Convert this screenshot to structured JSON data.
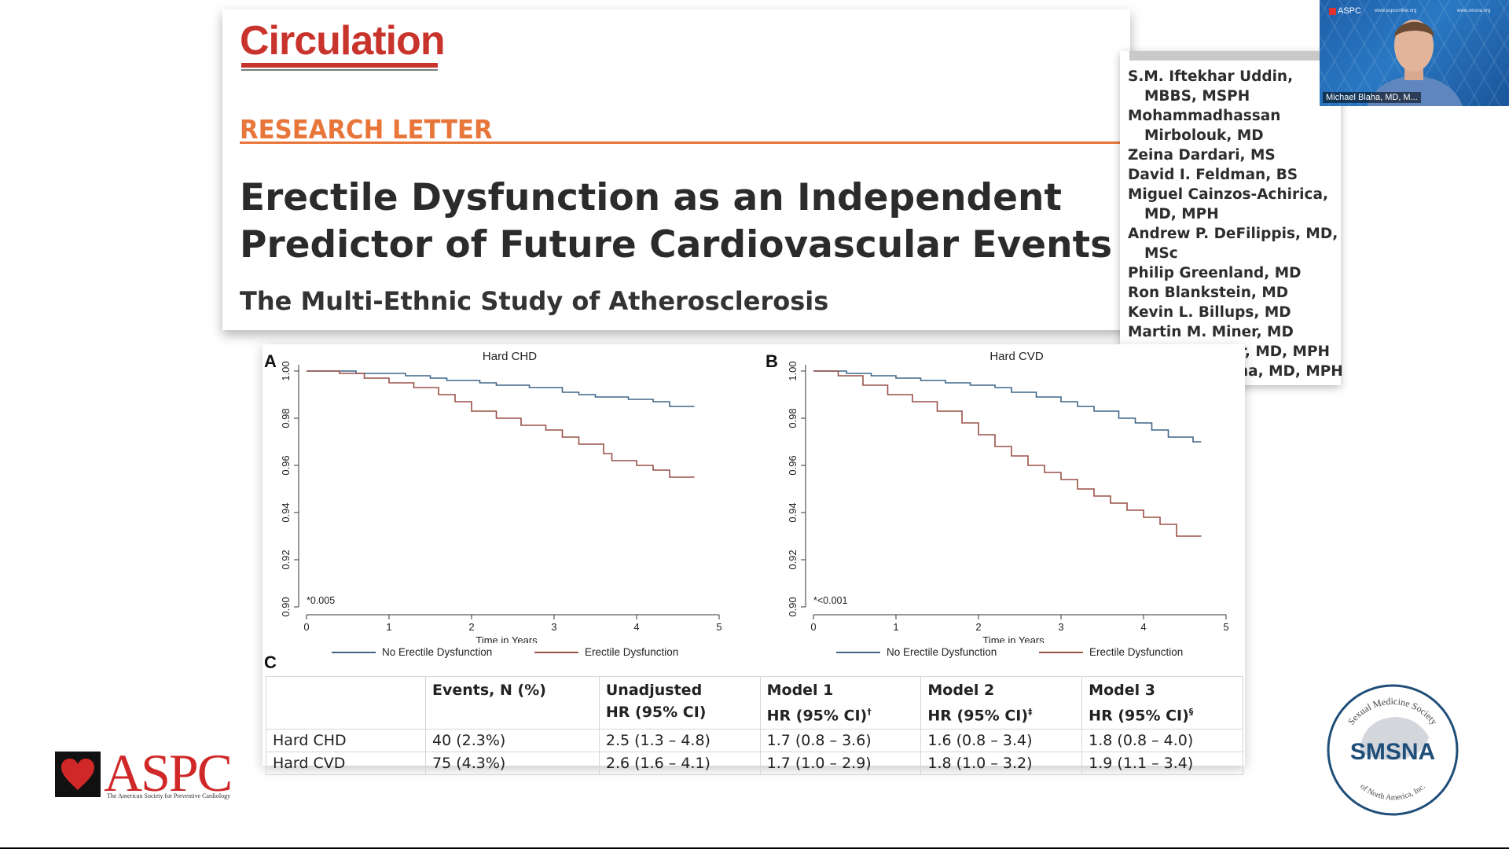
{
  "title_card": {
    "journal": "Circulation",
    "section": "RESEARCH LETTER",
    "title": "Erectile Dysfunction as an Independent Predictor of Future Cardiovascular Events",
    "subtitle": "The Multi-Ethnic Study of Atherosclerosis"
  },
  "authors": [
    "S.M. Iftekhar Uddin, MBBS, MSPH",
    "Mohammadhassan Mirbolouk, MD",
    "Zeina Dardari, MS",
    "David I. Feldman, BS",
    "Miguel Cainzos-Achirica, MD, MPH",
    "Andrew P. DeFilippis, MD, MSc",
    "Philip Greenland, MD",
    "Ron Blankstein, MD",
    "Kevin L. Billups, MD",
    "Martin M. Miner, MD",
    "Khurram Nasir, MD, MPH",
    "Michael J. Blaha, MD, MPH"
  ],
  "video": {
    "header": "ASPC",
    "url_left": "www.aspconline.org",
    "url_right": "www.smsna.org",
    "presenter": "Michael Blaha, MD, M..."
  },
  "figure": {
    "panel_c_label": "C",
    "legend": {
      "no_ed": "No Erectile Dysfunction",
      "ed": "Erectile Dysfunction",
      "colors": {
        "no_ed": "#3f6688",
        "ed": "#9a5148"
      }
    }
  },
  "chart_data": [
    {
      "type": "line",
      "panel": "A",
      "title": "Hard CHD",
      "xlabel": "Time in Years",
      "ylabel": "",
      "xlim": [
        0,
        5
      ],
      "ylim": [
        0.9,
        1.0
      ],
      "xticks": [
        "0",
        "1",
        "2",
        "3",
        "4",
        "5"
      ],
      "yticks": [
        "0.90",
        "0.92",
        "0.94",
        "0.96",
        "0.98",
        "1.00"
      ],
      "annotation": "*0.005",
      "series": [
        {
          "name": "No Erectile Dysfunction",
          "color": "#3f6688",
          "x": [
            0,
            0.6,
            1.2,
            1.5,
            1.7,
            2.1,
            2.3,
            2.7,
            3.1,
            3.3,
            3.5,
            3.9,
            4.2,
            4.4,
            4.7
          ],
          "y": [
            1.0,
            0.999,
            0.998,
            0.997,
            0.996,
            0.995,
            0.994,
            0.993,
            0.991,
            0.99,
            0.989,
            0.988,
            0.987,
            0.985,
            0.985
          ]
        },
        {
          "name": "Erectile Dysfunction",
          "color": "#9a5148",
          "x": [
            0,
            0.4,
            0.7,
            1.0,
            1.3,
            1.6,
            1.8,
            2.0,
            2.3,
            2.6,
            2.9,
            3.1,
            3.3,
            3.6,
            3.7,
            4.0,
            4.2,
            4.4,
            4.7
          ],
          "y": [
            1.0,
            0.999,
            0.997,
            0.995,
            0.993,
            0.99,
            0.987,
            0.983,
            0.98,
            0.977,
            0.975,
            0.972,
            0.969,
            0.965,
            0.962,
            0.96,
            0.958,
            0.955,
            0.955
          ]
        }
      ]
    },
    {
      "type": "line",
      "panel": "B",
      "title": "Hard CVD",
      "xlabel": "Time in Years",
      "ylabel": "",
      "xlim": [
        0,
        5
      ],
      "ylim": [
        0.9,
        1.0
      ],
      "xticks": [
        "0",
        "1",
        "2",
        "3",
        "4",
        "5"
      ],
      "yticks": [
        "0.90",
        "0.92",
        "0.94",
        "0.96",
        "0.98",
        "1.00"
      ],
      "annotation": "*<0.001",
      "series": [
        {
          "name": "No Erectile Dysfunction",
          "color": "#3f6688",
          "x": [
            0,
            0.4,
            0.7,
            1.0,
            1.3,
            1.6,
            1.9,
            2.2,
            2.4,
            2.7,
            3.0,
            3.2,
            3.4,
            3.7,
            3.9,
            4.1,
            4.3,
            4.6,
            4.7
          ],
          "y": [
            1.0,
            0.999,
            0.998,
            0.997,
            0.996,
            0.995,
            0.994,
            0.993,
            0.991,
            0.989,
            0.987,
            0.985,
            0.983,
            0.98,
            0.978,
            0.975,
            0.972,
            0.97,
            0.97
          ]
        },
        {
          "name": "Erectile Dysfunction",
          "color": "#9a5148",
          "x": [
            0,
            0.3,
            0.6,
            0.9,
            1.2,
            1.5,
            1.8,
            2.0,
            2.2,
            2.4,
            2.6,
            2.8,
            3.0,
            3.2,
            3.4,
            3.6,
            3.8,
            4.0,
            4.2,
            4.4,
            4.7
          ],
          "y": [
            1.0,
            0.998,
            0.994,
            0.99,
            0.987,
            0.983,
            0.978,
            0.973,
            0.968,
            0.964,
            0.96,
            0.957,
            0.954,
            0.95,
            0.947,
            0.944,
            0.941,
            0.938,
            0.935,
            0.93,
            0.93
          ]
        }
      ]
    },
    {
      "type": "table",
      "panel": "C",
      "headers": [
        "",
        "Events, N (%)",
        "Unadjusted HR (95% CI)",
        "Model 1 HR (95% CI)",
        "Model 2 HR (95% CI)",
        "Model 3 HR (95% CI)"
      ],
      "header_lines": [
        [
          "",
          ""
        ],
        [
          "Events, N (%)",
          ""
        ],
        [
          "Unadjusted",
          "HR (95% CI)"
        ],
        [
          "Model 1",
          "HR (95% CI)"
        ],
        [
          "Model 2",
          "HR (95% CI)"
        ],
        [
          "Model 3",
          "HR (95% CI)"
        ]
      ],
      "header_marks": [
        "",
        "",
        "",
        "†",
        "‡",
        "§"
      ],
      "rows": [
        [
          "Hard CHD",
          "40 (2.3%)",
          "2.5 (1.3 – 4.8)",
          "1.7 (0.8 – 3.6)",
          "1.6 (0.8 – 3.4)",
          "1.8 (0.8 – 4.0)"
        ],
        [
          "Hard CVD",
          "75 (4.3%)",
          "2.6 (1.6 – 4.1)",
          "1.7 (1.0 – 2.9)",
          "1.8 (1.0 – 3.2)",
          "1.9 (1.1 – 3.4)"
        ]
      ]
    }
  ],
  "logos": {
    "aspc": {
      "text": "ASPC",
      "tagline": "The American Society for Preventive Cardiology",
      "color": "#d02828"
    },
    "smsna": {
      "text": "SMSNA",
      "ring_top": "Sexual Medicine Society",
      "ring_bottom": "of North America, Inc.",
      "color": "#1f4e79"
    }
  }
}
